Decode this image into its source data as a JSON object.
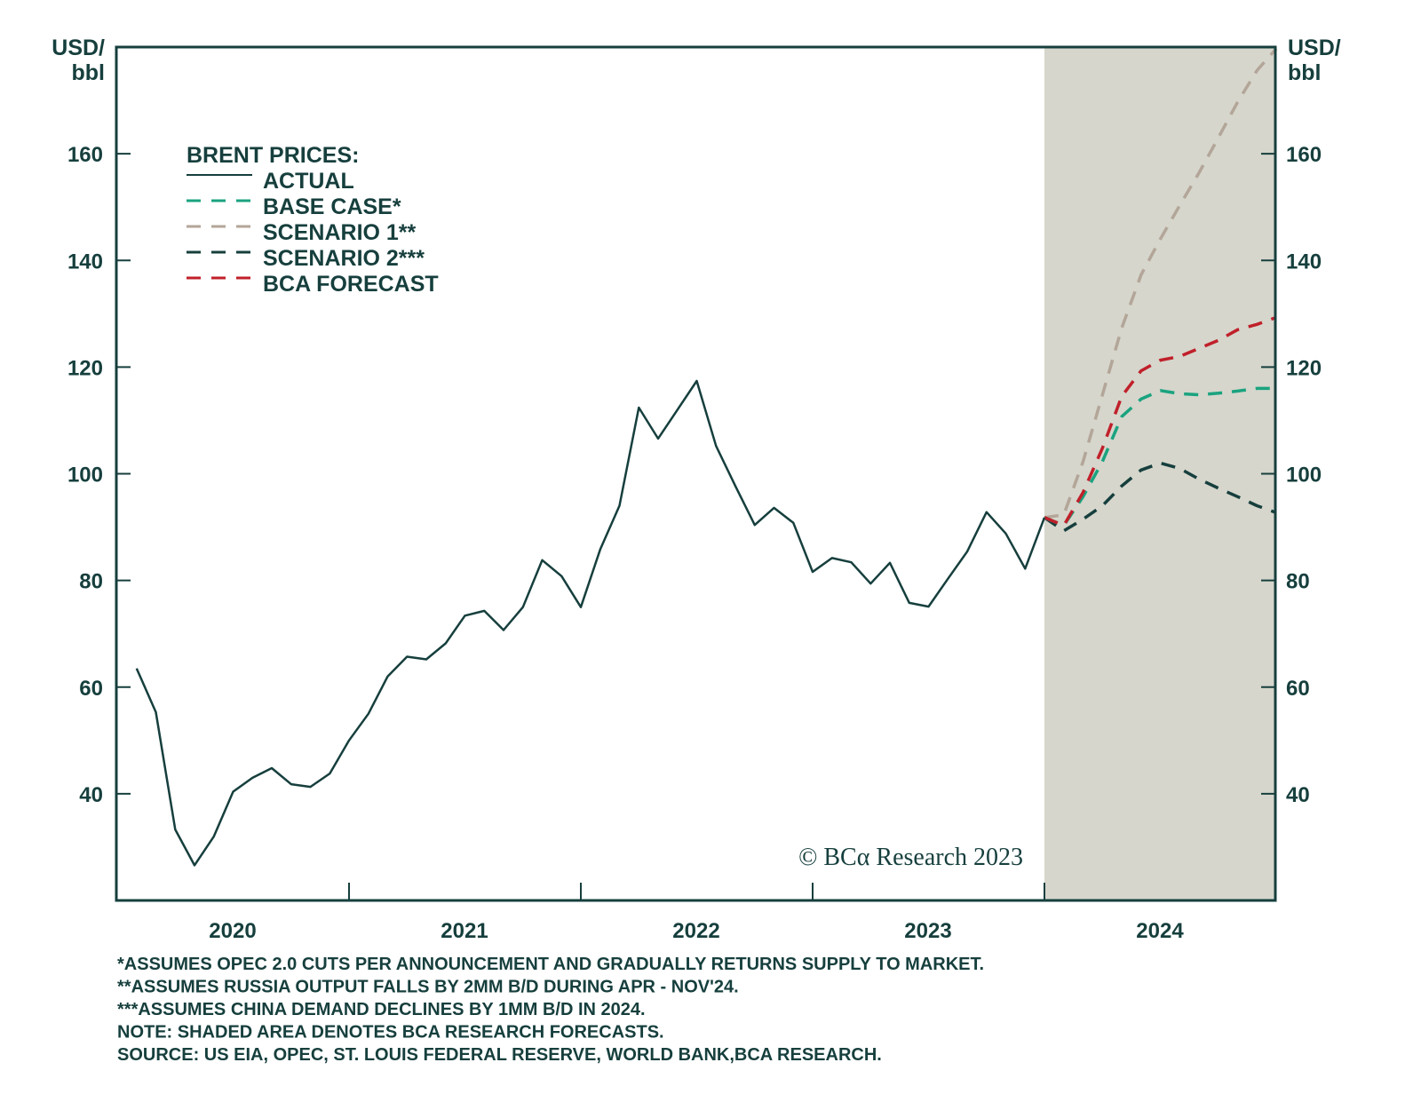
{
  "chart_data": {
    "type": "line",
    "title": "",
    "ylabel_left": "USD/\nbbl",
    "ylabel_right": "USD/\nbbl",
    "ylabel_line1": "USD/",
    "ylabel_line2": "bbl",
    "ylim": [
      20,
      180
    ],
    "yticks": [
      40,
      60,
      80,
      100,
      120,
      140,
      160
    ],
    "ytick_labels": [
      "40",
      "60",
      "80",
      "100",
      "120",
      "140",
      "160"
    ],
    "x_unit": "months since Jan 2020 (0 = Jan 2020)",
    "xlim": [
      -1,
      59
    ],
    "xticks_labels": [
      "2020",
      "2021",
      "2022",
      "2023",
      "2024"
    ],
    "forecast_shaded_from_month": 47,
    "legend_title": "BRENT PRICES:",
    "legend_position": "upper-left",
    "series": [
      {
        "name": "ACTUAL",
        "color": "#163f3d",
        "dashed": false,
        "start_month": 0,
        "values": [
          63.5,
          55.3,
          33.3,
          26.6,
          32,
          40.4,
          43,
          44.8,
          41.8,
          41.3,
          43.8,
          50,
          55,
          62,
          65.7,
          65.2,
          68.2,
          73.4,
          74.3,
          70.7,
          75,
          83.8,
          80.8,
          75,
          85.8,
          94,
          112.4,
          106.6,
          112,
          117.4,
          105.2,
          97.7,
          90.4,
          93.6,
          90.8,
          81.6,
          84.2,
          83.4,
          79.4,
          83.3,
          75.8,
          75.1,
          80.3,
          85.4,
          92.8,
          88.8,
          82.2,
          91.8
        ]
      },
      {
        "name": "BASE CASE*",
        "color": "#1aa37f",
        "dashed": true,
        "start_month": 47,
        "values": [
          91.8,
          90.3,
          95.7,
          102.3,
          110.7,
          114,
          115.6,
          115,
          114.8,
          115.1,
          115.5,
          116,
          116
        ]
      },
      {
        "name": "SCENARIO 1**",
        "color": "#b3a699",
        "dashed": true,
        "start_month": 47,
        "values": [
          91.8,
          92.3,
          102.3,
          114.8,
          127.3,
          137.3,
          144,
          150.3,
          156.4,
          163,
          169.7,
          175.6,
          179.7
        ]
      },
      {
        "name": "SCENARIO 2***",
        "color": "#163f3d",
        "dashed": true,
        "start_month": 47,
        "values": [
          91.8,
          89.3,
          91.5,
          94,
          97.7,
          100.7,
          102,
          101,
          99,
          97.3,
          95.7,
          94,
          92.7
        ]
      },
      {
        "name": "BCA FORECAST",
        "color": "#c0202a",
        "dashed": true,
        "start_month": 47,
        "values": [
          91.8,
          90.3,
          96.5,
          104.8,
          114.5,
          119.3,
          121.3,
          122,
          123.5,
          125,
          127,
          128,
          129.3
        ]
      }
    ],
    "watermark": "© BCα Research 2023",
    "footnotes": [
      "*ASSUMES OPEC 2.0 CUTS PER ANNOUNCEMENT AND GRADUALLY RETURNS SUPPLY TO MARKET.",
      "**ASSUMES RUSSIA OUTPUT FALLS BY 2MM B/D DURING APR - NOV'24.",
      "***ASSUMES CHINA DEMAND DECLINES BY 1MM B/D IN 2024.",
      "NOTE: SHADED AREA DENOTES BCA RESEARCH FORECASTS.",
      "SOURCE: US EIA, OPEC, ST. LOUIS FEDERAL RESERVE, WORLD BANK,BCA RESEARCH."
    ],
    "colors": {
      "shade": "#d6d6cc",
      "axis": "#163f3d"
    }
  }
}
